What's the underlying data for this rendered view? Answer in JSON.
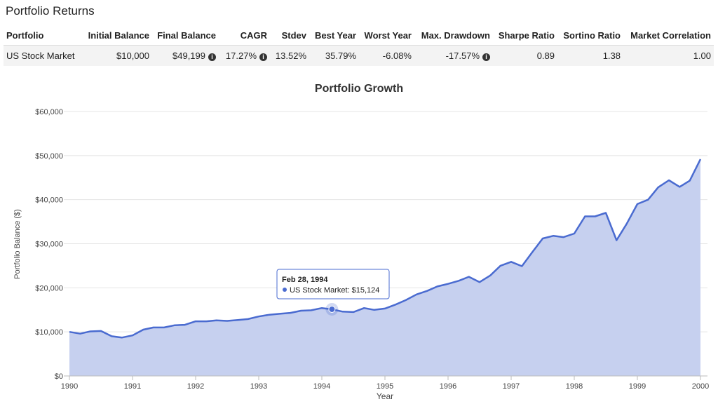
{
  "header": {
    "title": "Portfolio Returns"
  },
  "table": {
    "columns": [
      "Portfolio",
      "Initial Balance",
      "Final Balance",
      "CAGR",
      "Stdev",
      "Best Year",
      "Worst Year",
      "Max. Drawdown",
      "Sharpe Ratio",
      "Sortino Ratio",
      "Market Correlation"
    ],
    "rows": [
      [
        "US Stock Market",
        "$10,000",
        "$49,199",
        "17.27%",
        "13.52%",
        "35.79%",
        "-6.08%",
        "-17.57%",
        "0.89",
        "1.38",
        "1.00"
      ]
    ]
  },
  "chart_data": {
    "type": "area",
    "title": "Portfolio Growth",
    "x_label": "Year",
    "y_label": "Portfolio Balance ($)",
    "x": [
      1990.0,
      1990.17,
      1990.33,
      1990.5,
      1990.67,
      1990.83,
      1991.0,
      1991.17,
      1991.33,
      1991.5,
      1991.67,
      1991.83,
      1992.0,
      1992.17,
      1992.33,
      1992.5,
      1992.67,
      1992.83,
      1993.0,
      1993.17,
      1993.33,
      1993.5,
      1993.67,
      1993.83,
      1994.0,
      1994.16,
      1994.33,
      1994.5,
      1994.67,
      1994.83,
      1995.0,
      1995.17,
      1995.33,
      1995.5,
      1995.67,
      1995.83,
      1996.0,
      1996.17,
      1996.33,
      1996.5,
      1996.67,
      1996.83,
      1997.0,
      1997.17,
      1997.33,
      1997.5,
      1997.67,
      1997.83,
      1998.0,
      1998.17,
      1998.33,
      1998.5,
      1998.67,
      1998.83,
      1999.0,
      1999.17,
      1999.33,
      1999.5,
      1999.67,
      1999.83,
      2000.0
    ],
    "series": [
      {
        "name": "US Stock Market",
        "color": "#4a6bd0",
        "fill": "#c6d0ef",
        "values": [
          10000,
          9600,
          10100,
          10200,
          9000,
          8700,
          9200,
          10500,
          11000,
          11000,
          11500,
          11600,
          12400,
          12400,
          12600,
          12500,
          12700,
          12900,
          13500,
          13900,
          14100,
          14300,
          14800,
          14900,
          15400,
          15124,
          14600,
          14500,
          15400,
          15000,
          15300,
          16200,
          17200,
          18500,
          19300,
          20300,
          20900,
          21600,
          22500,
          21300,
          22800,
          25000,
          25900,
          24900,
          28000,
          31200,
          31800,
          31500,
          32300,
          36200,
          36200,
          37000,
          30800,
          34500,
          39000,
          40000,
          42800,
          44400,
          42900,
          44300,
          49199
        ]
      }
    ],
    "xlim": [
      1990,
      2000
    ],
    "xticks": [
      1990,
      1991,
      1992,
      1993,
      1994,
      1995,
      1996,
      1997,
      1998,
      1999,
      2000
    ],
    "ylim": [
      0,
      60000
    ],
    "yticks": [
      {
        "value": 0,
        "label": "$0"
      },
      {
        "value": 10000,
        "label": "$10,000"
      },
      {
        "value": 20000,
        "label": "$20,000"
      },
      {
        "value": 30000,
        "label": "$30,000"
      },
      {
        "value": 40000,
        "label": "$40,000"
      },
      {
        "value": 50000,
        "label": "$50,000"
      },
      {
        "value": 60000,
        "label": "$60,000"
      }
    ],
    "grid": true,
    "tooltip": {
      "title": "Feb 28, 1994",
      "text": "US Stock Market: $15,124",
      "point": 25
    }
  }
}
